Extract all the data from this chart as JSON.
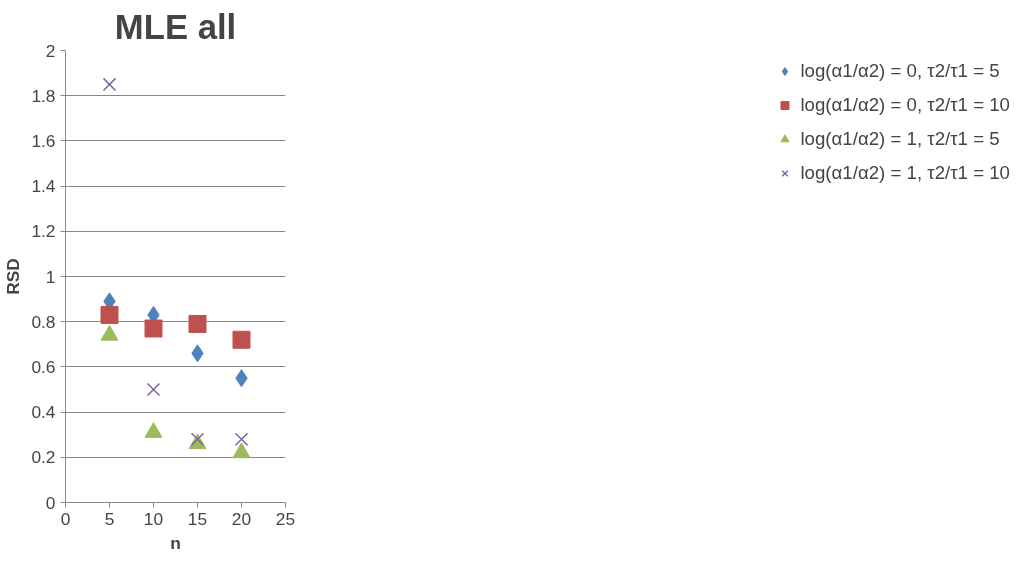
{
  "chart_data": {
    "type": "scatter",
    "title": "MLE all",
    "xlabel": "n",
    "ylabel": "RSD",
    "x": [
      5,
      10,
      15,
      20
    ],
    "series": [
      {
        "name": "log(α1/α2) = 0, τ2/τ1 = 5",
        "color": "#4f81bd",
        "marker": "diamond",
        "values": [
          0.89,
          0.83,
          0.66,
          0.55
        ]
      },
      {
        "name": "log(α1/α2) = 0, τ2/τ1 = 10",
        "color": "#c0504d",
        "marker": "square",
        "values": [
          0.83,
          0.77,
          0.79,
          0.72
        ]
      },
      {
        "name": "log(α1/α2) = 1, τ2/τ1 = 5",
        "color": "#9bbb59",
        "marker": "triangle",
        "values": [
          0.74,
          0.31,
          0.26,
          0.22
        ]
      },
      {
        "name": "log(α1/α2) = 1, τ2/τ1 = 10",
        "color": "#8064a2",
        "marker": "cross",
        "values": [
          1.85,
          0.5,
          0.28,
          0.28
        ]
      }
    ],
    "xlim": [
      0,
      25
    ],
    "xticks": [
      0,
      5,
      10,
      15,
      20,
      25
    ],
    "ylim": [
      0,
      2
    ],
    "yticks": [
      0,
      0.2,
      0.4,
      0.6,
      0.8,
      1,
      1.2,
      1.4,
      1.6,
      1.8,
      2
    ],
    "grid": "y",
    "legend": "right"
  }
}
